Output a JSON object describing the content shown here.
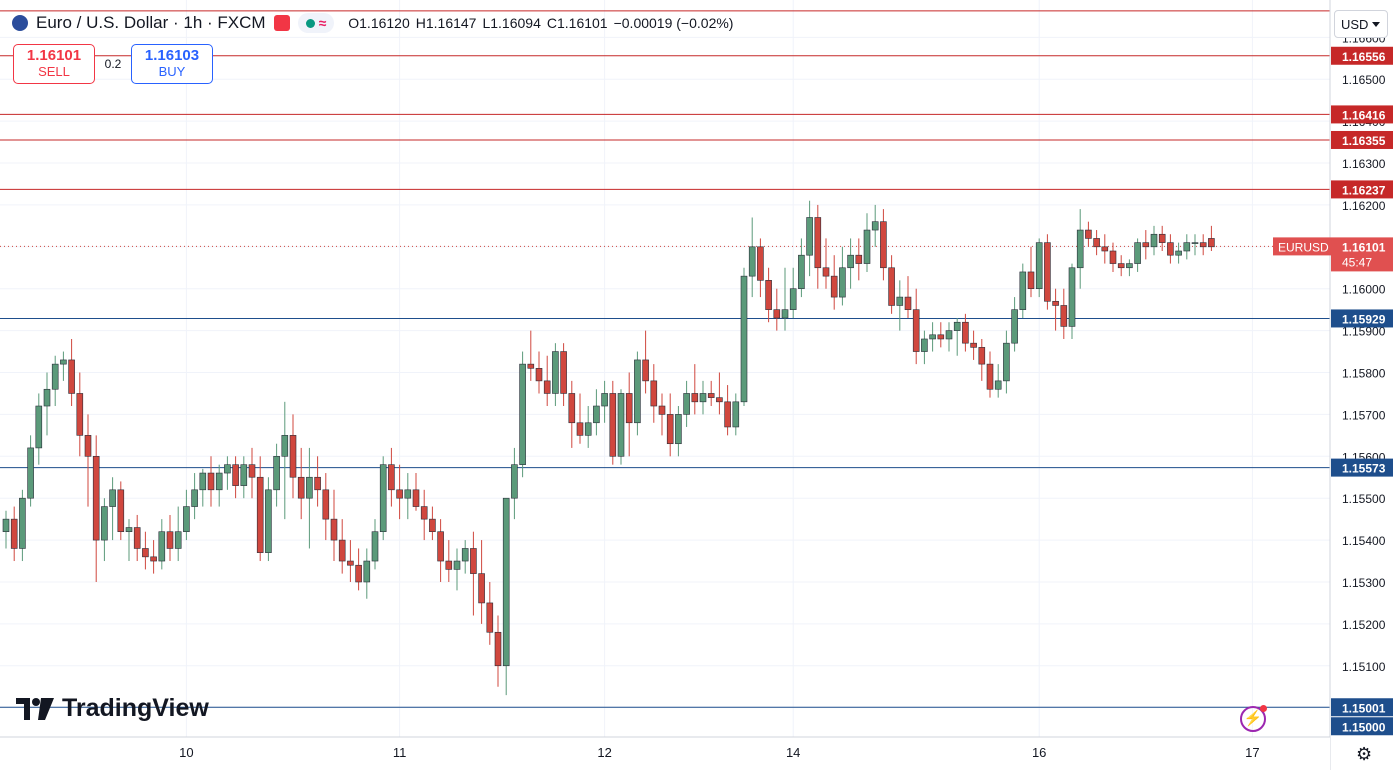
{
  "header": {
    "symbol_title": "Euro / U.S. Dollar · 1h · FXCM",
    "open": "O1.16120",
    "high": "H1.16147",
    "low": "L1.16094",
    "close": "C1.16101",
    "change": "−0.00019 (−0.02%)",
    "wave_icon": "≈"
  },
  "trade": {
    "sell_price": "1.16101",
    "sell_label": "SELL",
    "spread": "0.2",
    "buy_price": "1.16103",
    "buy_label": "BUY"
  },
  "currency_label": "USD",
  "brand": "TradingView",
  "colors": {
    "up": "#5b9a7a",
    "down": "#d0473e",
    "resistance_line": "#c62828",
    "support_line": "#1e4e8c",
    "price_label": "#e05050"
  },
  "chart_data": {
    "type": "candlestick",
    "symbol": "EURUSD",
    "timeframe": "1h",
    "y_range": [
      1.1493,
      1.1667
    ],
    "y_ticks": [
      1.15,
      1.151,
      1.152,
      1.153,
      1.154,
      1.155,
      1.156,
      1.157,
      1.158,
      1.159,
      1.16,
      1.161,
      1.162,
      1.163,
      1.164,
      1.165,
      1.166
    ],
    "y_tick_labels": [
      "1.15000",
      "1.15100",
      "1.15200",
      "1.15300",
      "1.15400",
      "1.15500",
      "1.15600",
      "1.15700",
      "1.15800",
      "1.15900",
      "1.16000",
      "1.16100",
      "1.16200",
      "1.16300",
      "1.16400",
      "1.16500",
      "1.16600"
    ],
    "x_labels": [
      {
        "text": "10",
        "index": 22
      },
      {
        "text": "11",
        "index": 48
      },
      {
        "text": "12",
        "index": 73
      },
      {
        "text": "14",
        "index": 96
      },
      {
        "text": "16",
        "index": 126
      },
      {
        "text": "17",
        "index": 152
      }
    ],
    "horizontal_lines": [
      {
        "value": 1.16663,
        "label": "",
        "kind": "resistance"
      },
      {
        "value": 1.16556,
        "label": "1.16556",
        "kind": "resistance"
      },
      {
        "value": 1.16416,
        "label": "1.16416",
        "kind": "resistance"
      },
      {
        "value": 1.16355,
        "label": "1.16355",
        "kind": "resistance"
      },
      {
        "value": 1.16237,
        "label": "1.16237",
        "kind": "resistance"
      },
      {
        "value": 1.15929,
        "label": "1.15929",
        "kind": "support"
      },
      {
        "value": 1.15573,
        "label": "1.15573",
        "kind": "support"
      },
      {
        "value": 1.15001,
        "label": "1.15001",
        "kind": "support"
      }
    ],
    "extra_axis_label": "1.15000",
    "current_price": {
      "value": 1.16101,
      "symbol": "EURUSD",
      "price": "1.16101",
      "countdown": "45:47"
    },
    "candles": [
      [
        1.1542,
        1.1547,
        1.1538,
        1.1545
      ],
      [
        1.1545,
        1.1548,
        1.1535,
        1.1538
      ],
      [
        1.1538,
        1.1552,
        1.1535,
        1.155
      ],
      [
        1.155,
        1.1565,
        1.1548,
        1.1562
      ],
      [
        1.1562,
        1.1575,
        1.1558,
        1.1572
      ],
      [
        1.1572,
        1.158,
        1.1565,
        1.1576
      ],
      [
        1.1576,
        1.1584,
        1.1572,
        1.1582
      ],
      [
        1.1582,
        1.1585,
        1.1578,
        1.1583
      ],
      [
        1.1583,
        1.1588,
        1.1572,
        1.1575
      ],
      [
        1.1575,
        1.158,
        1.156,
        1.1565
      ],
      [
        1.1565,
        1.157,
        1.1548,
        1.156
      ],
      [
        1.156,
        1.1565,
        1.153,
        1.154
      ],
      [
        1.154,
        1.155,
        1.1535,
        1.1548
      ],
      [
        1.1548,
        1.1555,
        1.154,
        1.1552
      ],
      [
        1.1552,
        1.1554,
        1.154,
        1.1542
      ],
      [
        1.1542,
        1.1545,
        1.1535,
        1.1543
      ],
      [
        1.1543,
        1.1546,
        1.1535,
        1.1538
      ],
      [
        1.1538,
        1.1542,
        1.1533,
        1.1536
      ],
      [
        1.1536,
        1.154,
        1.1532,
        1.1535
      ],
      [
        1.1535,
        1.1545,
        1.1533,
        1.1542
      ],
      [
        1.1542,
        1.1546,
        1.1535,
        1.1538
      ],
      [
        1.1538,
        1.1548,
        1.1535,
        1.1542
      ],
      [
        1.1542,
        1.1552,
        1.154,
        1.1548
      ],
      [
        1.1548,
        1.1556,
        1.1545,
        1.1552
      ],
      [
        1.1552,
        1.1557,
        1.1548,
        1.1556
      ],
      [
        1.1556,
        1.156,
        1.1548,
        1.1552
      ],
      [
        1.1552,
        1.1558,
        1.1548,
        1.1556
      ],
      [
        1.1556,
        1.156,
        1.1552,
        1.1558
      ],
      [
        1.1558,
        1.156,
        1.155,
        1.1553
      ],
      [
        1.1553,
        1.156,
        1.155,
        1.1558
      ],
      [
        1.1558,
        1.1562,
        1.155,
        1.1555
      ],
      [
        1.1555,
        1.156,
        1.1535,
        1.1537
      ],
      [
        1.1537,
        1.1555,
        1.1535,
        1.1552
      ],
      [
        1.1552,
        1.1563,
        1.1548,
        1.156
      ],
      [
        1.156,
        1.1573,
        1.1545,
        1.1565
      ],
      [
        1.1565,
        1.157,
        1.155,
        1.1555
      ],
      [
        1.1555,
        1.1562,
        1.1545,
        1.155
      ],
      [
        1.155,
        1.1562,
        1.1538,
        1.1555
      ],
      [
        1.1555,
        1.156,
        1.1548,
        1.1552
      ],
      [
        1.1552,
        1.1556,
        1.154,
        1.1545
      ],
      [
        1.1545,
        1.1552,
        1.1535,
        1.154
      ],
      [
        1.154,
        1.1545,
        1.1532,
        1.1535
      ],
      [
        1.1535,
        1.154,
        1.153,
        1.1534
      ],
      [
        1.1534,
        1.1538,
        1.1528,
        1.153
      ],
      [
        1.153,
        1.1538,
        1.1526,
        1.1535
      ],
      [
        1.1535,
        1.1545,
        1.1533,
        1.1542
      ],
      [
        1.1542,
        1.156,
        1.154,
        1.1558
      ],
      [
        1.1558,
        1.1562,
        1.1548,
        1.1552
      ],
      [
        1.1552,
        1.1558,
        1.1545,
        1.155
      ],
      [
        1.155,
        1.1556,
        1.1545,
        1.1552
      ],
      [
        1.1552,
        1.1556,
        1.1547,
        1.1548
      ],
      [
        1.1548,
        1.1552,
        1.154,
        1.1545
      ],
      [
        1.1545,
        1.1548,
        1.154,
        1.1542
      ],
      [
        1.1542,
        1.1545,
        1.153,
        1.1535
      ],
      [
        1.1535,
        1.154,
        1.153,
        1.1533
      ],
      [
        1.1533,
        1.1538,
        1.1528,
        1.1535
      ],
      [
        1.1535,
        1.154,
        1.1532,
        1.1538
      ],
      [
        1.1538,
        1.1542,
        1.1522,
        1.1532
      ],
      [
        1.1532,
        1.154,
        1.152,
        1.1525
      ],
      [
        1.1525,
        1.153,
        1.1515,
        1.1518
      ],
      [
        1.1518,
        1.1522,
        1.1505,
        1.151
      ],
      [
        1.151,
        1.155,
        1.1503,
        1.155
      ],
      [
        1.155,
        1.1562,
        1.1545,
        1.1558
      ],
      [
        1.1558,
        1.1585,
        1.1555,
        1.1582
      ],
      [
        1.1582,
        1.159,
        1.1578,
        1.1581
      ],
      [
        1.1581,
        1.1585,
        1.1575,
        1.1578
      ],
      [
        1.1578,
        1.1584,
        1.1572,
        1.1575
      ],
      [
        1.1575,
        1.1587,
        1.1572,
        1.1585
      ],
      [
        1.1585,
        1.1587,
        1.1572,
        1.1575
      ],
      [
        1.1575,
        1.1578,
        1.1562,
        1.1568
      ],
      [
        1.1568,
        1.1575,
        1.1563,
        1.1565
      ],
      [
        1.1565,
        1.1572,
        1.1562,
        1.1568
      ],
      [
        1.1568,
        1.1576,
        1.1565,
        1.1572
      ],
      [
        1.1572,
        1.1578,
        1.1568,
        1.1575
      ],
      [
        1.1575,
        1.1578,
        1.1558,
        1.156
      ],
      [
        1.156,
        1.1576,
        1.1558,
        1.1575
      ],
      [
        1.1575,
        1.158,
        1.156,
        1.1568
      ],
      [
        1.1568,
        1.1585,
        1.1565,
        1.1583
      ],
      [
        1.1583,
        1.159,
        1.1575,
        1.1578
      ],
      [
        1.1578,
        1.1582,
        1.1568,
        1.1572
      ],
      [
        1.1572,
        1.1575,
        1.1565,
        1.157
      ],
      [
        1.157,
        1.1575,
        1.156,
        1.1563
      ],
      [
        1.1563,
        1.1572,
        1.156,
        1.157
      ],
      [
        1.157,
        1.1578,
        1.1567,
        1.1575
      ],
      [
        1.1575,
        1.1582,
        1.157,
        1.1573
      ],
      [
        1.1573,
        1.1578,
        1.157,
        1.1575
      ],
      [
        1.1575,
        1.1578,
        1.1572,
        1.1574
      ],
      [
        1.1574,
        1.158,
        1.157,
        1.1573
      ],
      [
        1.1573,
        1.1577,
        1.1565,
        1.1567
      ],
      [
        1.1567,
        1.1575,
        1.1565,
        1.1573
      ],
      [
        1.1573,
        1.1605,
        1.1572,
        1.1603
      ],
      [
        1.1603,
        1.1617,
        1.1598,
        1.161
      ],
      [
        1.161,
        1.1612,
        1.1598,
        1.1602
      ],
      [
        1.1602,
        1.1605,
        1.1592,
        1.1595
      ],
      [
        1.1595,
        1.16,
        1.159,
        1.1593
      ],
      [
        1.1593,
        1.1605,
        1.159,
        1.1595
      ],
      [
        1.1595,
        1.1605,
        1.1593,
        1.16
      ],
      [
        1.16,
        1.1612,
        1.1598,
        1.1608
      ],
      [
        1.1608,
        1.1621,
        1.1603,
        1.1617
      ],
      [
        1.1617,
        1.162,
        1.16,
        1.1605
      ],
      [
        1.1605,
        1.1612,
        1.16,
        1.1603
      ],
      [
        1.1603,
        1.1608,
        1.1595,
        1.1598
      ],
      [
        1.1598,
        1.161,
        1.1596,
        1.1605
      ],
      [
        1.1605,
        1.1612,
        1.16,
        1.1608
      ],
      [
        1.1608,
        1.1612,
        1.1602,
        1.1606
      ],
      [
        1.1606,
        1.1618,
        1.1604,
        1.1614
      ],
      [
        1.1614,
        1.162,
        1.161,
        1.1616
      ],
      [
        1.1616,
        1.1619,
        1.1602,
        1.1605
      ],
      [
        1.1605,
        1.1608,
        1.1594,
        1.1596
      ],
      [
        1.1596,
        1.1602,
        1.159,
        1.1598
      ],
      [
        1.1598,
        1.1603,
        1.1593,
        1.1595
      ],
      [
        1.1595,
        1.16,
        1.1582,
        1.1585
      ],
      [
        1.1585,
        1.159,
        1.1582,
        1.1588
      ],
      [
        1.1588,
        1.1592,
        1.1585,
        1.1589
      ],
      [
        1.1589,
        1.1592,
        1.1586,
        1.1588
      ],
      [
        1.1588,
        1.1592,
        1.1585,
        1.159
      ],
      [
        1.159,
        1.1593,
        1.1584,
        1.1592
      ],
      [
        1.1592,
        1.1594,
        1.1585,
        1.1587
      ],
      [
        1.1587,
        1.159,
        1.1583,
        1.1586
      ],
      [
        1.1586,
        1.1588,
        1.1578,
        1.1582
      ],
      [
        1.1582,
        1.1585,
        1.1574,
        1.1576
      ],
      [
        1.1576,
        1.1582,
        1.1574,
        1.1578
      ],
      [
        1.1578,
        1.159,
        1.1575,
        1.1587
      ],
      [
        1.1587,
        1.1598,
        1.1585,
        1.1595
      ],
      [
        1.1595,
        1.1606,
        1.1593,
        1.1604
      ],
      [
        1.1604,
        1.161,
        1.1598,
        1.16
      ],
      [
        1.16,
        1.1612,
        1.1598,
        1.1611
      ],
      [
        1.1611,
        1.1613,
        1.1595,
        1.1597
      ],
      [
        1.1597,
        1.16,
        1.159,
        1.1596
      ],
      [
        1.1596,
        1.16,
        1.1588,
        1.1591
      ],
      [
        1.1591,
        1.1606,
        1.1588,
        1.1605
      ],
      [
        1.1605,
        1.1619,
        1.16,
        1.1614
      ],
      [
        1.1614,
        1.1616,
        1.161,
        1.1612
      ],
      [
        1.1612,
        1.1614,
        1.1608,
        1.161
      ],
      [
        1.161,
        1.1613,
        1.1606,
        1.1609
      ],
      [
        1.1609,
        1.1611,
        1.1604,
        1.1606
      ],
      [
        1.1606,
        1.1608,
        1.1603,
        1.1605
      ],
      [
        1.1605,
        1.1607,
        1.1603,
        1.1606
      ],
      [
        1.1606,
        1.1612,
        1.1604,
        1.1611
      ],
      [
        1.1611,
        1.1614,
        1.1607,
        1.161
      ],
      [
        1.161,
        1.1615,
        1.1608,
        1.1613
      ],
      [
        1.1613,
        1.1615,
        1.1609,
        1.1611
      ],
      [
        1.1611,
        1.1613,
        1.1606,
        1.1608
      ],
      [
        1.1608,
        1.1611,
        1.1606,
        1.1609
      ],
      [
        1.1609,
        1.1613,
        1.1607,
        1.1611
      ],
      [
        1.1611,
        1.1613,
        1.1608,
        1.1611
      ],
      [
        1.1611,
        1.1613,
        1.1608,
        1.161
      ],
      [
        1.1612,
        1.1615,
        1.1609,
        1.161
      ]
    ]
  }
}
